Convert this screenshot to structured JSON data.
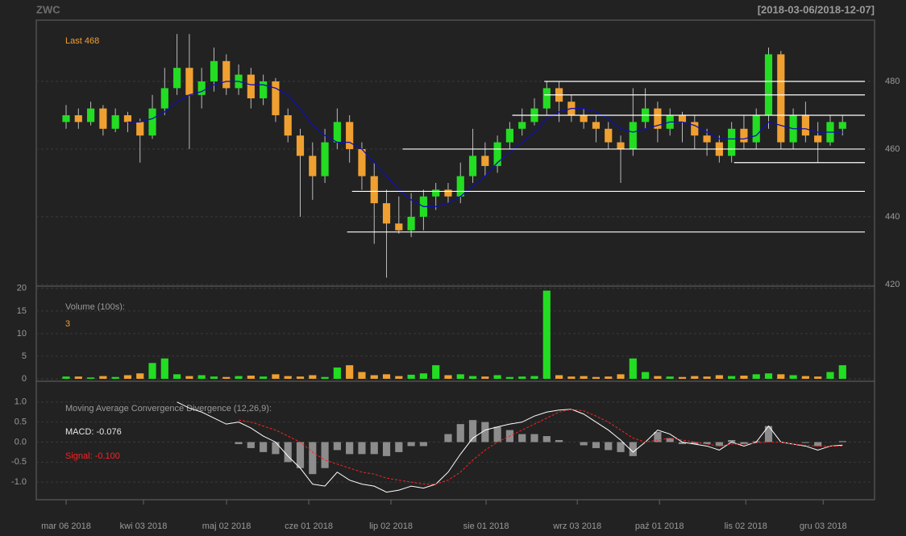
{
  "title": "ZWC",
  "date_range": "[2018-03-06/2018-12-07]",
  "chart_data": [
    {
      "type": "candlestick",
      "last_label": "Last 468",
      "up_color": "#22dd22",
      "down_color": "#f0a030",
      "open": [
        468,
        470,
        468,
        472,
        466,
        470,
        468,
        464,
        472,
        478,
        484,
        476,
        480,
        486,
        478,
        482,
        475,
        480,
        470,
        464,
        458,
        452,
        462,
        468,
        460,
        452,
        444,
        438,
        436,
        440,
        446,
        448,
        446,
        452,
        458,
        455,
        462,
        466,
        468,
        472,
        478,
        474,
        470,
        468,
        466,
        462,
        460,
        468,
        472,
        466,
        470,
        468,
        464,
        462,
        458,
        466,
        462,
        470,
        488,
        462,
        470,
        464,
        462,
        466
      ],
      "high": [
        473,
        472,
        474,
        473,
        472,
        471,
        469,
        476,
        484,
        494,
        494,
        484,
        490,
        488,
        485,
        484,
        482,
        481,
        472,
        466,
        462,
        466,
        472,
        470,
        462,
        456,
        448,
        446,
        447,
        448,
        450,
        450,
        456,
        466,
        462,
        464,
        468,
        472,
        475,
        480,
        480,
        476,
        472,
        470,
        468,
        464,
        478,
        478,
        474,
        472,
        471,
        470,
        466,
        464,
        468,
        470,
        472,
        490,
        489,
        472,
        474,
        468,
        470,
        470
      ],
      "low": [
        466,
        466,
        467,
        464,
        465,
        465,
        456,
        463,
        470,
        476,
        460,
        472,
        477,
        476,
        476,
        472,
        473,
        468,
        462,
        440,
        445,
        450,
        460,
        456,
        448,
        432,
        422,
        435,
        434,
        436,
        442,
        444,
        444,
        450,
        452,
        453,
        460,
        464,
        467,
        470,
        468,
        468,
        466,
        462,
        460,
        450,
        458,
        466,
        462,
        464,
        462,
        460,
        458,
        456,
        456,
        460,
        460,
        466,
        460,
        460,
        462,
        456,
        461,
        464
      ],
      "close": [
        470,
        468,
        472,
        466,
        470,
        468,
        464,
        472,
        478,
        484,
        476,
        480,
        486,
        478,
        482,
        475,
        480,
        470,
        464,
        458,
        452,
        462,
        468,
        460,
        452,
        444,
        438,
        436,
        440,
        446,
        448,
        446,
        452,
        458,
        455,
        462,
        466,
        468,
        472,
        478,
        474,
        470,
        468,
        466,
        462,
        460,
        468,
        472,
        466,
        470,
        468,
        464,
        462,
        458,
        466,
        462,
        470,
        488,
        462,
        470,
        464,
        462,
        468,
        468
      ],
      "ma": {
        "color": "#1010b0",
        "values": [
          null,
          null,
          null,
          null,
          null,
          468,
          468,
          469,
          471,
          474,
          476,
          477,
          479,
          480,
          480,
          479,
          479,
          478,
          476,
          472,
          467,
          464,
          462,
          462,
          460,
          456,
          452,
          448,
          445,
          443,
          443,
          444,
          446,
          449,
          452,
          456,
          459,
          462,
          465,
          469,
          471,
          472,
          472,
          471,
          469,
          466,
          465,
          466,
          467,
          468,
          468,
          467,
          465,
          463,
          463,
          463,
          464,
          468,
          467,
          466,
          466,
          465,
          465,
          465
        ]
      },
      "levels": [
        {
          "y": 480,
          "x": 38.8
        },
        {
          "y": 476,
          "x": 38.8
        },
        {
          "y": 470,
          "x": 36.2
        },
        {
          "y": 460,
          "x": 27.3
        },
        {
          "y": 456,
          "x": 54.2
        },
        {
          "y": 447.5,
          "x": 23.2
        },
        {
          "y": 435.5,
          "x": 22.8
        }
      ],
      "xlim": [
        -2.42,
        65.6
      ],
      "ylim": [
        419.5,
        498.1
      ],
      "yticks": [
        420,
        440,
        460,
        480
      ],
      "grid": true
    },
    {
      "type": "bar",
      "title": "Volume (100s):",
      "values": [
        0.5,
        0.5,
        0.3,
        0.6,
        0.4,
        0.8,
        1.2,
        3.5,
        4.5,
        1.0,
        0.6,
        0.8,
        0.5,
        0.4,
        0.6,
        0.7,
        0.5,
        1.0,
        0.6,
        0.5,
        0.8,
        0.4,
        2.5,
        3.0,
        1.5,
        0.8,
        1.0,
        0.6,
        0.9,
        1.2,
        3.0,
        0.8,
        1.0,
        0.6,
        0.5,
        0.8,
        0.4,
        0.5,
        0.6,
        19.5,
        0.8,
        0.5,
        0.6,
        0.4,
        0.5,
        1.0,
        4.5,
        1.5,
        0.6,
        0.5,
        0.4,
        0.6,
        0.5,
        0.8,
        0.6,
        0.7,
        1.0,
        1.2,
        1.0,
        0.8,
        0.6,
        0.5,
        1.5,
        3
      ],
      "ylim": [
        -0.54,
        20.5
      ],
      "yticks": [
        0,
        5,
        10,
        15,
        20
      ],
      "grid": true
    },
    {
      "type": "macd",
      "title": "Moving Average Convergence Divergence (12,26,9):",
      "macd_label": "MACD: -0.076",
      "signal_label": "Signal: -0.100",
      "macd": {
        "color": "#ffffff",
        "values": [
          null,
          null,
          null,
          null,
          null,
          null,
          null,
          null,
          null,
          1.0,
          0.85,
          0.75,
          0.6,
          0.45,
          0.5,
          0.35,
          0.15,
          0.0,
          -0.35,
          -0.65,
          -1.05,
          -1.1,
          -0.75,
          -0.95,
          -1.05,
          -1.1,
          -1.25,
          -1.2,
          -1.1,
          -1.15,
          -1.05,
          -0.75,
          -0.3,
          0.1,
          0.3,
          0.38,
          0.45,
          0.5,
          0.65,
          0.75,
          0.8,
          0.82,
          0.7,
          0.5,
          0.3,
          0.05,
          -0.25,
          0.0,
          0.3,
          0.2,
          0.0,
          -0.05,
          -0.1,
          -0.2,
          0.0,
          -0.1,
          0.0,
          0.4,
          0.0,
          -0.05,
          -0.1,
          -0.2,
          -0.1,
          -0.076
        ]
      },
      "signal": {
        "color": "#ff2020",
        "values": [
          null,
          null,
          null,
          null,
          null,
          null,
          null,
          null,
          null,
          null,
          null,
          null,
          null,
          null,
          0.55,
          0.5,
          0.4,
          0.3,
          0.15,
          0.0,
          -0.25,
          -0.45,
          -0.55,
          -0.65,
          -0.75,
          -0.8,
          -0.9,
          -0.95,
          -1.0,
          -1.05,
          -1.05,
          -0.95,
          -0.75,
          -0.45,
          -0.2,
          0.0,
          0.15,
          0.3,
          0.45,
          0.6,
          0.75,
          0.82,
          0.78,
          0.65,
          0.5,
          0.3,
          0.1,
          0.0,
          0.05,
          0.1,
          0.05,
          0.0,
          -0.05,
          -0.1,
          -0.05,
          -0.05,
          -0.02,
          0.0,
          0.0,
          -0.05,
          -0.08,
          -0.1,
          -0.1,
          -0.1
        ]
      },
      "histogram": {
        "color": "#8c8c8c",
        "values": [
          null,
          null,
          null,
          null,
          null,
          null,
          null,
          null,
          null,
          null,
          null,
          null,
          null,
          null,
          -0.05,
          -0.15,
          -0.25,
          -0.3,
          -0.5,
          -0.65,
          -0.8,
          -0.65,
          -0.2,
          -0.3,
          -0.3,
          -0.3,
          -0.35,
          -0.25,
          -0.1,
          -0.1,
          0.0,
          0.2,
          0.45,
          0.55,
          0.5,
          0.38,
          0.3,
          0.2,
          0.2,
          0.15,
          0.05,
          0.0,
          -0.08,
          -0.15,
          -0.2,
          -0.25,
          -0.35,
          0.0,
          0.25,
          0.1,
          -0.05,
          -0.05,
          -0.05,
          -0.1,
          0.05,
          -0.05,
          0.02,
          0.4,
          0.0,
          0.0,
          -0.02,
          -0.1,
          0.0,
          0.024
        ]
      },
      "ylim": [
        -1.44,
        1.52
      ],
      "yticks": [
        {
          "value": -1.0,
          "label": "-1.0"
        },
        -0.5,
        {
          "value": 0.0,
          "label": "0.0"
        },
        0.5,
        {
          "value": 1.0,
          "label": "1.0"
        }
      ],
      "grid": true,
      "xticks": [
        {
          "value": 0,
          "label": "mar 06 2018"
        },
        {
          "value": 6.28,
          "label": "kwi 03 2018"
        },
        {
          "value": 13.02,
          "label": "maj 02 2018"
        },
        {
          "value": 19.69,
          "label": "cze 01 2018"
        },
        {
          "value": 26.36,
          "label": "lip 02 2018"
        },
        {
          "value": 34.08,
          "label": "sie 01 2018"
        },
        {
          "value": 41.48,
          "label": "wrz 03 2018"
        },
        {
          "value": 48.15,
          "label": "paź 01 2018"
        },
        {
          "value": 55.15,
          "label": "lis 02 2018"
        },
        {
          "value": 61.43,
          "label": "gru 03 2018"
        }
      ]
    }
  ]
}
